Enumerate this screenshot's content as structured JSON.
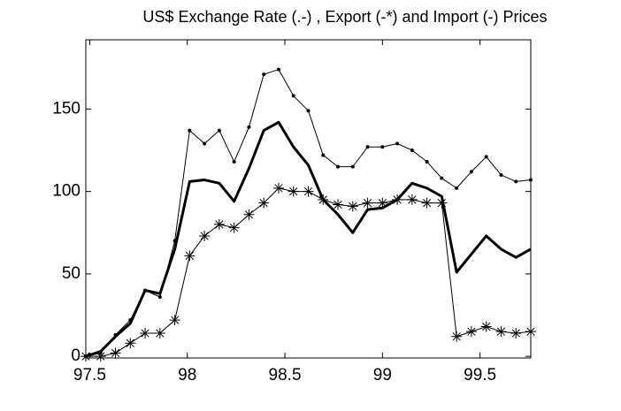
{
  "chart_data": {
    "type": "line",
    "title": "US$ Exchange Rate (.-) , Export (-*) and Import (-) Prices",
    "x": [
      97.48,
      97.556,
      97.632,
      97.708,
      97.784,
      97.86,
      97.936,
      98.012,
      98.088,
      98.164,
      98.24,
      98.316,
      98.392,
      98.468,
      98.544,
      98.62,
      98.696,
      98.772,
      98.848,
      98.924,
      99.0,
      99.076,
      99.152,
      99.228,
      99.304,
      99.38,
      99.456,
      99.532,
      99.608,
      99.684,
      99.76
    ],
    "series": [
      {
        "color": "#000000",
        "line_width": 1,
        "marker": "dot",
        "values": [
          0,
          2,
          13,
          22,
          40,
          36,
          70,
          137,
          129,
          137,
          118,
          139,
          171,
          174,
          158,
          149,
          122,
          115,
          115,
          127,
          127,
          129,
          125,
          118,
          108,
          102,
          112,
          121,
          110,
          106,
          107
        ]
      },
      {
        "color": "#000000",
        "line_width": 3,
        "marker": "none",
        "values": [
          0,
          3,
          12,
          20,
          40,
          38,
          65,
          106,
          107,
          105,
          94,
          114,
          137,
          142,
          127,
          116,
          95,
          86,
          75,
          89,
          90,
          95,
          105,
          102,
          97,
          51,
          62,
          73,
          65,
          60,
          65
        ]
      },
      {
        "color": "#000000",
        "line_width": 1,
        "marker": "asterisk",
        "values": [
          0,
          0,
          2,
          8,
          14,
          14,
          22,
          61,
          73,
          80,
          78,
          86,
          93,
          102,
          100,
          100,
          95,
          92,
          91,
          93,
          93,
          95,
          95,
          93,
          93,
          12,
          15,
          18,
          15,
          14,
          15
        ]
      }
    ],
    "xlim": [
      97.48,
      99.76
    ],
    "xticks": [
      97.5,
      98,
      98.5,
      99,
      99.5
    ],
    "ylim": [
      -1,
      192
    ],
    "yticks": [
      0,
      50,
      100,
      150
    ]
  }
}
